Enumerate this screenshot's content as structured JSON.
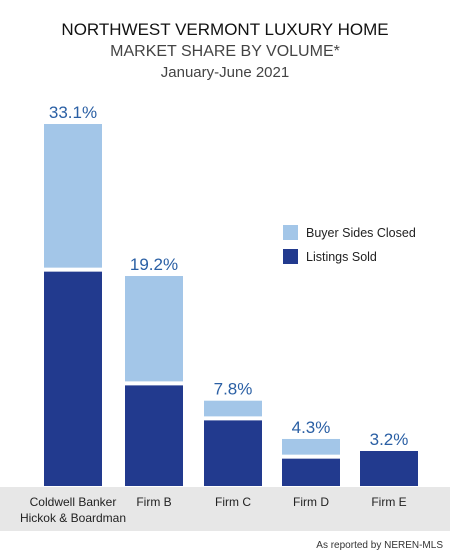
{
  "header": {
    "title": "NORTHWEST VERMONT LUXURY HOME",
    "subtitle": "MARKET SHARE BY VOLUME*",
    "period": "January-June 2021"
  },
  "footer": {
    "source": "As reported by NEREN-MLS"
  },
  "colors": {
    "buyer_sides": "#a3c6e8",
    "listings_sold": "#223a8e",
    "label": "#2a5fa4",
    "axis_band": "#e7e7e7"
  },
  "chart_data": {
    "type": "bar",
    "stacked": true,
    "title": "NORTHWEST VERMONT LUXURY HOME",
    "subtitle": "MARKET SHARE BY VOLUME*",
    "categories": [
      [
        "Coldwell Banker",
        "Hickok & Boardman"
      ],
      [
        "Firm B"
      ],
      [
        "Firm C"
      ],
      [
        "Firm D"
      ],
      [
        "Firm E"
      ]
    ],
    "totals_labels": [
      "33.1%",
      "19.2%",
      "7.8%",
      "4.3%",
      "3.2%"
    ],
    "totals": [
      33.1,
      19.2,
      7.8,
      4.3,
      3.2
    ],
    "series": [
      {
        "name": "Listings Sold",
        "values": [
          19.6,
          9.2,
          6.0,
          2.5,
          3.2
        ]
      },
      {
        "name": "Buyer Sides Closed",
        "values": [
          13.5,
          10.0,
          1.8,
          1.8,
          0
        ]
      }
    ],
    "legend": [
      "Buyer Sides Closed",
      "Listings Sold"
    ],
    "legend_position": "right",
    "ylim": [
      0,
      33.1
    ],
    "grid": false
  }
}
